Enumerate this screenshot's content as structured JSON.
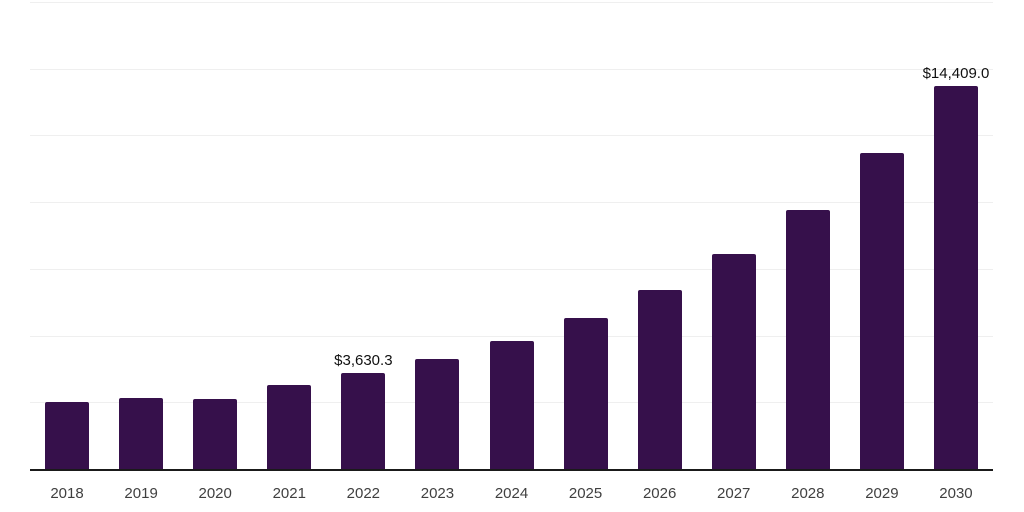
{
  "chart_data": {
    "type": "bar",
    "title": "",
    "xlabel": "",
    "ylabel": "",
    "categories": [
      "2018",
      "2019",
      "2020",
      "2021",
      "2022",
      "2023",
      "2024",
      "2025",
      "2026",
      "2027",
      "2028",
      "2029",
      "2030"
    ],
    "values": [
      2560,
      2710,
      2675,
      3170,
      3630.3,
      4160,
      4845,
      5680,
      6740,
      8090,
      9745,
      11865,
      14409
    ],
    "data_labels": {
      "2022": "$3,630.3",
      "2030": "$14,409.0"
    },
    "ylim": [
      0,
      17500
    ],
    "gridline_step": 2500,
    "grid": "horizontal",
    "legend": "none",
    "colors": {
      "bar": "#36104b",
      "axis_line": "#1a1a1a",
      "gridline": "#efefef",
      "tick_label": "#404040",
      "data_label": "#111111",
      "background": "#ffffff"
    }
  }
}
